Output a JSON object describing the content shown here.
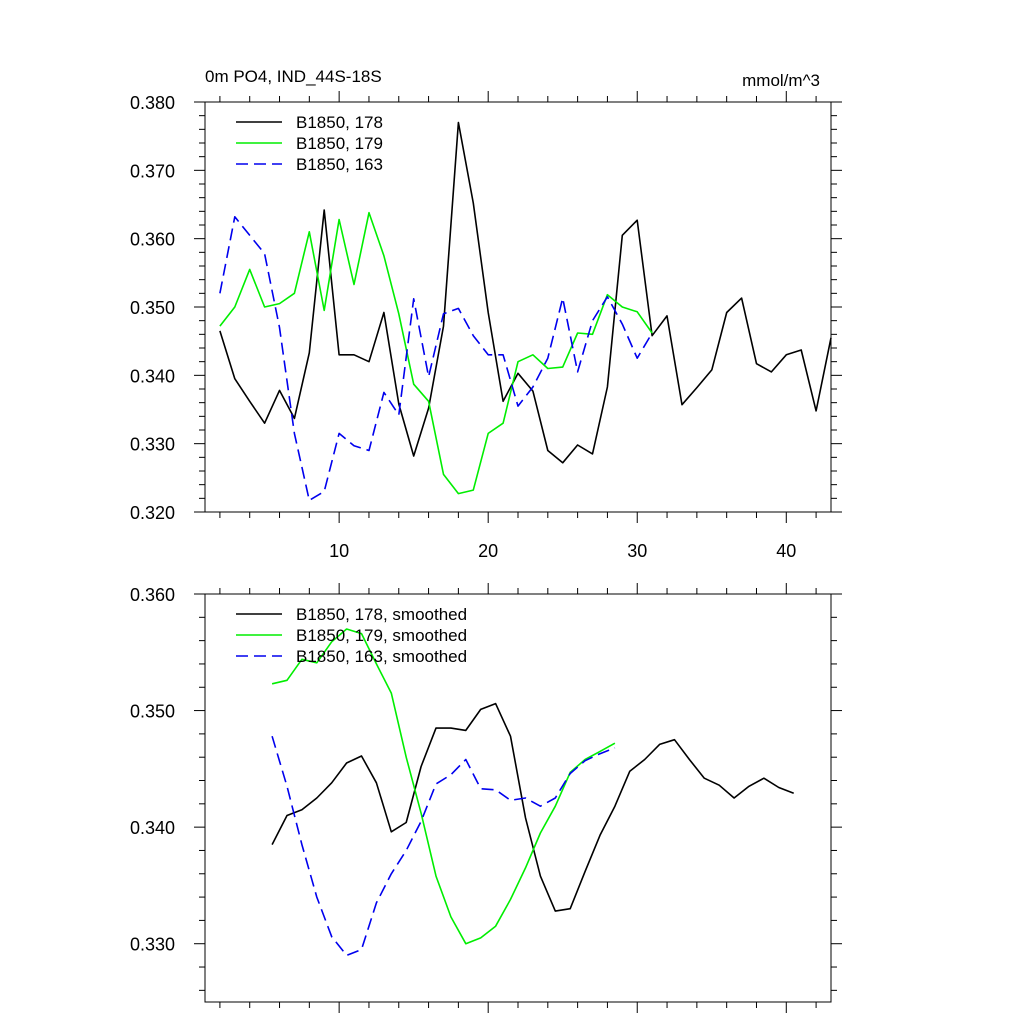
{
  "figure": {
    "title_left": "0m PO4, IND_44S-18S",
    "title_right": "mmol/m^3"
  },
  "chart_data": [
    {
      "type": "line",
      "title": "0m PO4, IND_44S-18S",
      "units": "mmol/m^3",
      "xlim": [
        1,
        43
      ],
      "ylim": [
        0.32,
        0.38
      ],
      "xticks": [
        10,
        20,
        30,
        40
      ],
      "xtick_labels": [
        "10",
        "20",
        "30",
        "40"
      ],
      "yticks": [
        0.32,
        0.33,
        0.34,
        0.35,
        0.36,
        0.37,
        0.38
      ],
      "ytick_labels": [
        "0.320",
        "0.330",
        "0.340",
        "0.350",
        "0.360",
        "0.370",
        "0.380"
      ],
      "legend_position": "top-left",
      "series": [
        {
          "name": "B1850, 178",
          "color": "#000000",
          "dash": "solid",
          "x": [
            2,
            3,
            4,
            5,
            6,
            7,
            8,
            9,
            10,
            11,
            12,
            13,
            14,
            15,
            16,
            17,
            18,
            19,
            20,
            21,
            22,
            23,
            24,
            25,
            26,
            27,
            28,
            29,
            30,
            31,
            32,
            33,
            34,
            35,
            36,
            37,
            38,
            39,
            40,
            41,
            42,
            43
          ],
          "y": [
            0.3465,
            0.3395,
            0.3362,
            0.333,
            0.3378,
            0.3337,
            0.3433,
            0.3642,
            0.343,
            0.343,
            0.342,
            0.3492,
            0.3358,
            0.3282,
            0.3352,
            0.3472,
            0.377,
            0.3652,
            0.3492,
            0.3362,
            0.3403,
            0.3377,
            0.329,
            0.3272,
            0.3298,
            0.3285,
            0.3383,
            0.3605,
            0.3627,
            0.3458,
            0.3487,
            0.3357,
            0.3382,
            0.3408,
            0.3492,
            0.3513,
            0.3417,
            0.3405,
            0.343,
            0.3437,
            0.3348,
            0.3455
          ]
        },
        {
          "name": "B1850, 179",
          "color": "#00ee00",
          "dash": "solid",
          "x": [
            2,
            3,
            4,
            5,
            6,
            7,
            8,
            9,
            10,
            11,
            12,
            13,
            14,
            15,
            16,
            17,
            18,
            19,
            20,
            21,
            22,
            23,
            24,
            25,
            26,
            27,
            28,
            29,
            30,
            31
          ],
          "y": [
            0.3472,
            0.35,
            0.3555,
            0.35,
            0.3505,
            0.352,
            0.361,
            0.3495,
            0.3628,
            0.3533,
            0.3638,
            0.3575,
            0.349,
            0.3387,
            0.3362,
            0.3255,
            0.3227,
            0.3232,
            0.3315,
            0.333,
            0.342,
            0.343,
            0.341,
            0.3412,
            0.3462,
            0.346,
            0.3518,
            0.35,
            0.3493,
            0.3462
          ]
        },
        {
          "name": "B1850, 163",
          "color": "#0000ee",
          "dash": "dashed",
          "x": [
            2,
            3,
            4,
            5,
            6,
            7,
            8,
            9,
            10,
            11,
            12,
            13,
            14,
            15,
            16,
            17,
            18,
            19,
            20,
            21,
            22,
            23,
            24,
            25,
            26,
            27,
            28,
            29,
            30,
            31
          ],
          "y": [
            0.352,
            0.3632,
            0.3605,
            0.3578,
            0.347,
            0.3315,
            0.3217,
            0.323,
            0.3315,
            0.3297,
            0.329,
            0.3375,
            0.3342,
            0.3512,
            0.3398,
            0.349,
            0.3498,
            0.3458,
            0.343,
            0.343,
            0.3355,
            0.3383,
            0.3425,
            0.3513,
            0.3405,
            0.348,
            0.3515,
            0.3475,
            0.3425,
            0.3462
          ]
        }
      ]
    },
    {
      "type": "line",
      "xlim": [
        1,
        43
      ],
      "ylim": [
        0.325,
        0.36
      ],
      "xticks": [
        10,
        20,
        30,
        40
      ],
      "yticks": [
        0.33,
        0.34,
        0.35,
        0.36
      ],
      "ytick_labels": [
        "0.330",
        "0.340",
        "0.350",
        "0.360"
      ],
      "legend_position": "top-left",
      "series": [
        {
          "name": "B1850, 178, smoothed",
          "color": "#000000",
          "dash": "solid",
          "x": [
            5.5,
            6.5,
            7.5,
            8.5,
            9.5,
            10.5,
            11.5,
            12.5,
            13.5,
            14.5,
            15.5,
            16.5,
            17.5,
            18.5,
            19.5,
            20.5,
            21.5,
            22.5,
            23.5,
            24.5,
            25.5,
            26.5,
            27.5,
            28.5,
            29.5,
            30.5,
            31.5,
            32.5,
            33.5,
            34.5,
            35.5,
            36.5,
            37.5,
            38.5,
            39.5,
            40.5
          ],
          "y": [
            0.3385,
            0.341,
            0.3415,
            0.3425,
            0.3438,
            0.3455,
            0.3461,
            0.3438,
            0.3396,
            0.3404,
            0.3452,
            0.3485,
            0.3485,
            0.3483,
            0.3501,
            0.3506,
            0.3478,
            0.3408,
            0.3358,
            0.3328,
            0.333,
            0.3362,
            0.3393,
            0.3418,
            0.3448,
            0.3458,
            0.3471,
            0.3475,
            0.3458,
            0.3442,
            0.3436,
            0.3425,
            0.3435,
            0.3442,
            0.3434,
            0.3429
          ]
        },
        {
          "name": "B1850, 179, smoothed",
          "color": "#00ee00",
          "dash": "solid",
          "x": [
            5.5,
            6.5,
            7.5,
            8.5,
            9.5,
            10.5,
            11.5,
            12.5,
            13.5,
            14.5,
            15.5,
            16.5,
            17.5,
            18.5,
            19.5,
            20.5,
            21.5,
            22.5,
            23.5,
            24.5,
            25.5,
            26.5,
            27.5,
            28.5
          ],
          "y": [
            0.3523,
            0.3526,
            0.3544,
            0.3541,
            0.3559,
            0.357,
            0.3566,
            0.354,
            0.3515,
            0.346,
            0.3412,
            0.3358,
            0.3323,
            0.33,
            0.3305,
            0.3315,
            0.3338,
            0.3365,
            0.3395,
            0.3418,
            0.3447,
            0.3458,
            0.3465,
            0.3472
          ]
        },
        {
          "name": "B1850, 163, smoothed",
          "color": "#0000ee",
          "dash": "dashed",
          "x": [
            5.5,
            6.5,
            7.5,
            8.5,
            9.5,
            10.5,
            11.5,
            12.5,
            13.5,
            14.5,
            15.5,
            16.5,
            17.5,
            18.5,
            19.5,
            20.5,
            21.5,
            22.5,
            23.5,
            24.5,
            25.5,
            26.5,
            27.5,
            28.5
          ],
          "y": [
            0.3478,
            0.3435,
            0.3385,
            0.334,
            0.3306,
            0.329,
            0.3295,
            0.3335,
            0.336,
            0.338,
            0.3405,
            0.3437,
            0.3445,
            0.3458,
            0.3433,
            0.3432,
            0.3423,
            0.3425,
            0.3418,
            0.3425,
            0.3446,
            0.3457,
            0.3463,
            0.3468
          ]
        }
      ]
    }
  ]
}
